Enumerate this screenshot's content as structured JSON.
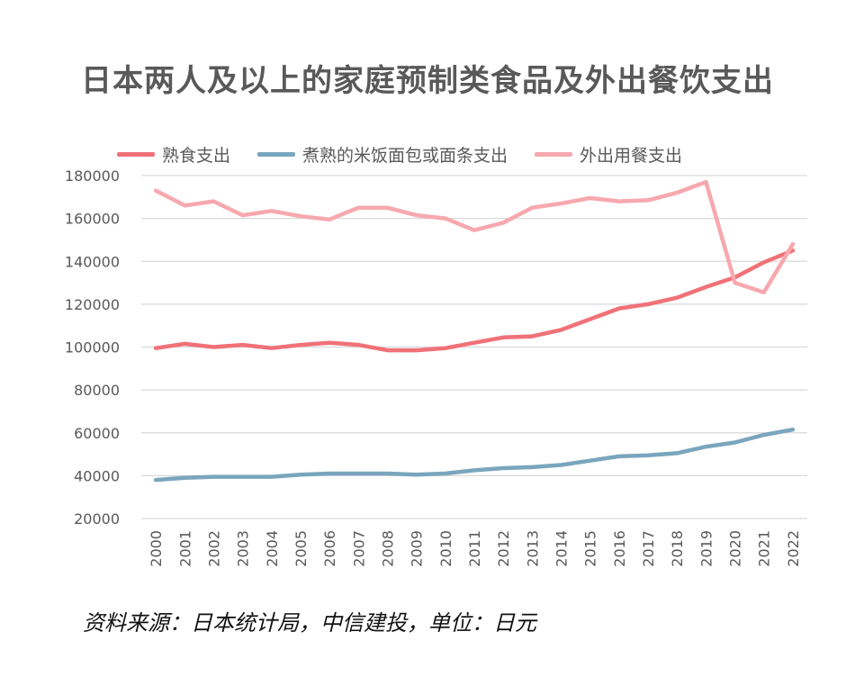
{
  "chart_data": {
    "type": "line",
    "title": "日本两人及以上的家庭预制类食品及外出餐饮支出",
    "xlabel": "",
    "ylabel": "",
    "ylim": [
      20000,
      180000
    ],
    "yticks": [
      "180000",
      "160000",
      "140000",
      "120000",
      "100000",
      "80000",
      "60000",
      "40000",
      "20000"
    ],
    "ytick_values": [
      180000,
      160000,
      140000,
      120000,
      100000,
      80000,
      60000,
      40000,
      20000
    ],
    "categories": [
      "2000",
      "2001",
      "2002",
      "2003",
      "2004",
      "2005",
      "2006",
      "2007",
      "2008",
      "2009",
      "2010",
      "2011",
      "2012",
      "2013",
      "2014",
      "2015",
      "2016",
      "2017",
      "2018",
      "2019",
      "2020",
      "2021",
      "2022"
    ],
    "grid": true,
    "legend_position": "top",
    "series": [
      {
        "name": "熟食支出",
        "color": "#f07178",
        "values": [
          99500,
          101500,
          100000,
          101000,
          99500,
          101000,
          102000,
          101000,
          98500,
          98500,
          99500,
          102000,
          104500,
          105000,
          108000,
          113000,
          118000,
          120000,
          123000,
          128000,
          132500,
          139500,
          145000
        ]
      },
      {
        "name": "煮熟的米饭面包或面条支出",
        "color": "#7aa6bd",
        "values": [
          38000,
          39000,
          39500,
          39500,
          39500,
          40500,
          41000,
          41000,
          41000,
          40500,
          41000,
          42500,
          43500,
          44000,
          45000,
          47000,
          49000,
          49500,
          50500,
          53500,
          55500,
          59000,
          61500
        ]
      },
      {
        "name": "外出用餐支出",
        "color": "#f7a8ae",
        "values": [
          173000,
          166000,
          168000,
          161500,
          163500,
          161000,
          159500,
          165000,
          165000,
          161500,
          160000,
          154500,
          158000,
          165000,
          167000,
          169500,
          168000,
          168500,
          172000,
          177000,
          130000,
          125500,
          148000
        ]
      }
    ]
  },
  "source_note": "资料来源：日本统计局，中信建投，单位：日元"
}
